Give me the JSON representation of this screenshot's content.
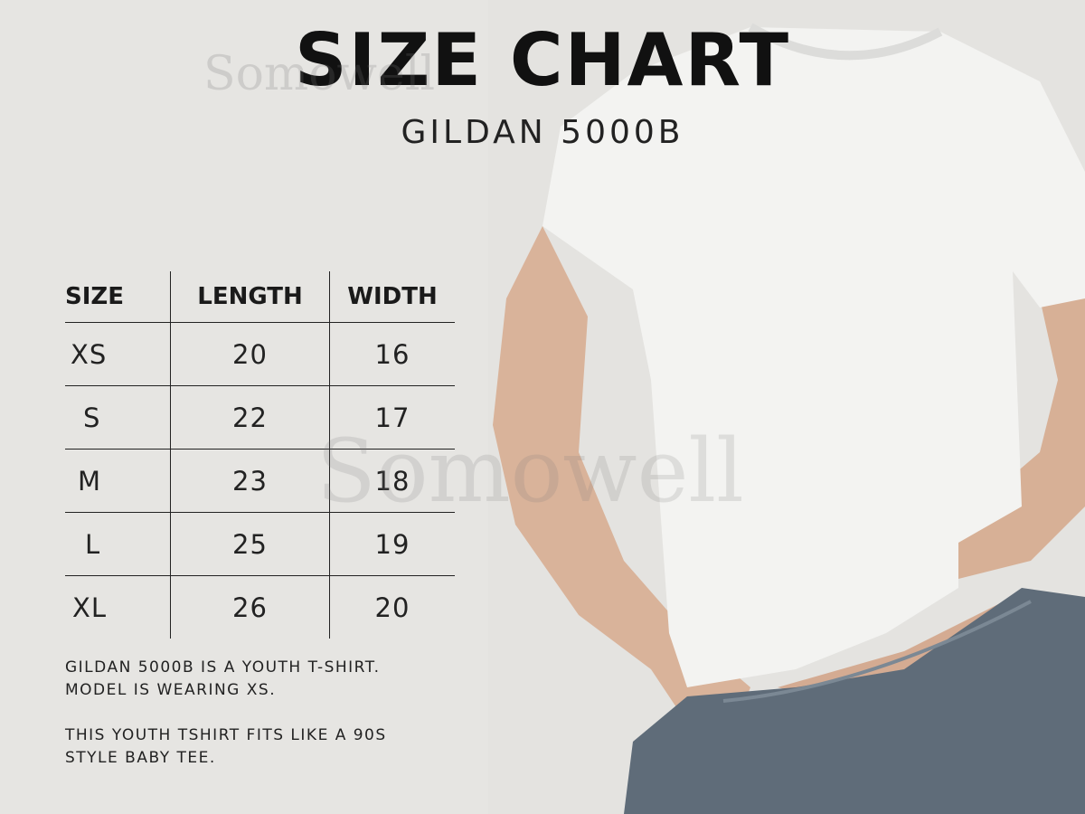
{
  "header": {
    "title": "SIZE CHART",
    "subtitle": "GILDAN 5000B"
  },
  "watermark": "Somowell",
  "table": {
    "headers": [
      "SIZE",
      "LENGTH",
      "WIDTH"
    ],
    "rows": [
      [
        "XS",
        "20",
        "16"
      ],
      [
        "S",
        "22",
        "17"
      ],
      [
        "M",
        "23",
        "18"
      ],
      [
        "L",
        "25",
        "19"
      ],
      [
        "XL",
        "26",
        "20"
      ]
    ]
  },
  "notes": {
    "line1": "GILDAN 5000B IS A YOUTH T-SHIRT.",
    "line2": "MODEL IS WEARING XS.",
    "line3": "THIS YOUTH TSHIRT FITS LIKE A 90S",
    "line4": "STYLE BABY TEE."
  },
  "colors": {
    "background": "#e6e5e2",
    "text": "#1a1a1a",
    "shirt": "#f2f2f0",
    "jeans": "#5e6b78"
  }
}
